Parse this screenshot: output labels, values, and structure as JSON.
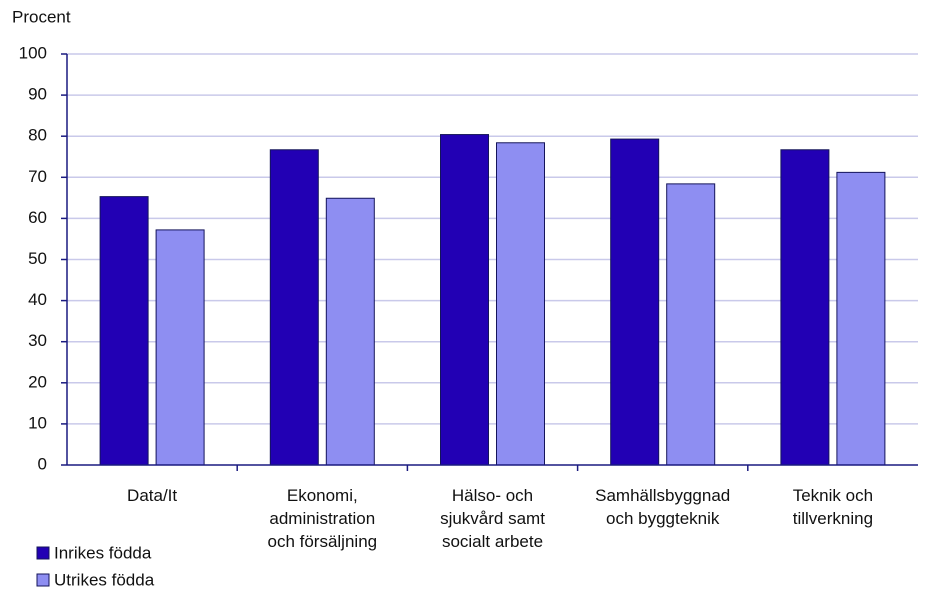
{
  "chart_data": {
    "type": "bar",
    "y_label": "Procent",
    "categories": [
      "Data/It",
      "Ekonomi,\nadministration\noch försäljning",
      "Hälso- och\nsjukvård samt\nsocialt arbete",
      "Samhällsbyggnad\noch byggteknik",
      "Teknik och\ntillverkning"
    ],
    "series": [
      {
        "name": "Inrikes födda",
        "color": "#2200b4",
        "values": [
          65.3,
          76.7,
          80.4,
          79.3,
          76.7
        ]
      },
      {
        "name": "Utrikes födda",
        "color": "#8e8ef2",
        "values": [
          57.2,
          64.9,
          78.4,
          68.4,
          71.2
        ]
      }
    ],
    "ylim": [
      0,
      100
    ],
    "yticks": [
      0,
      10,
      20,
      30,
      40,
      50,
      60,
      70,
      80,
      90,
      100
    ],
    "grid": true,
    "legend": "bottom-left"
  }
}
